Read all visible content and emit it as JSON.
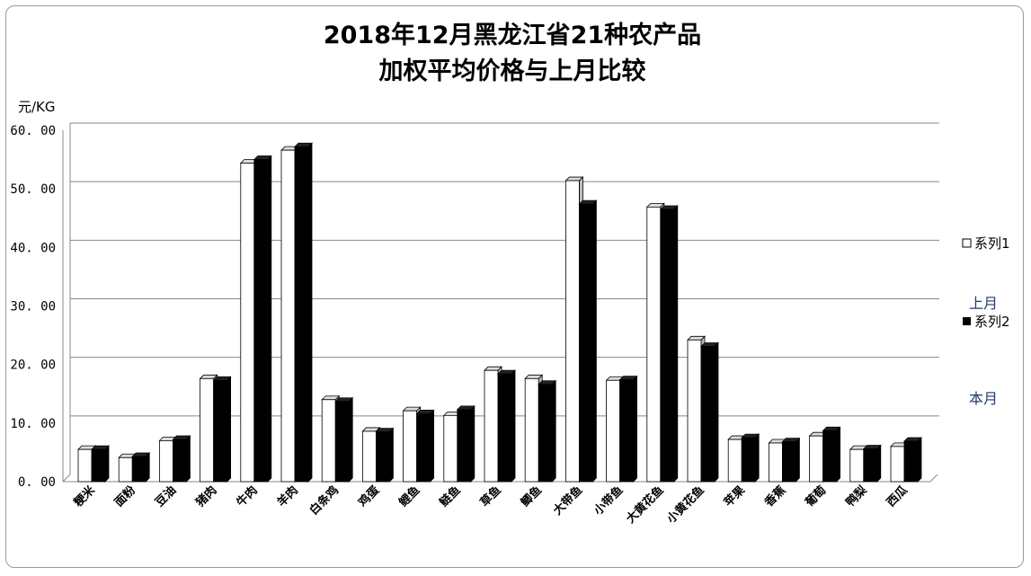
{
  "chart_data": {
    "type": "bar",
    "title": [
      "2018年12月黑龙江省21种农产品",
      "加权平均价格与上月比较"
    ],
    "ylabel": "元/KG",
    "ylim": [
      0,
      60
    ],
    "yticks": [
      "0. 00",
      "10. 00",
      "20. 00",
      "30. 00",
      "40. 00",
      "50. 00",
      "60. 00"
    ],
    "grid": true,
    "legend_position": "right",
    "categories": [
      "粳米",
      "面粉",
      "豆油",
      "猪肉",
      "牛肉",
      "羊肉",
      "白条鸡",
      "鸡蛋",
      "鲤鱼",
      "鲢鱼",
      "草鱼",
      "鲫鱼",
      "大带鱼",
      "小带鱼",
      "大黄花鱼",
      "小黄花鱼",
      "苹果",
      "香蕉",
      "葡萄",
      "鸭梨",
      "西瓜"
    ],
    "series": [
      {
        "name": "系列1",
        "color": "#ffffff",
        "values": [
          5.5,
          4.1,
          7.0,
          17.6,
          54.4,
          56.6,
          14.0,
          8.6,
          12.1,
          11.3,
          19.0,
          17.6,
          51.4,
          17.3,
          46.9,
          24.2,
          7.2,
          6.6,
          7.8,
          5.5,
          6.0
        ]
      },
      {
        "name": "系列2",
        "color": "#000000",
        "values": [
          5.5,
          4.3,
          7.2,
          17.3,
          55.0,
          57.2,
          13.7,
          8.5,
          11.6,
          12.3,
          18.4,
          16.6,
          47.4,
          17.4,
          46.5,
          23.1,
          7.5,
          6.8,
          8.7,
          5.6,
          6.9
        ]
      }
    ],
    "annotations": [
      "上月",
      "本月"
    ]
  }
}
